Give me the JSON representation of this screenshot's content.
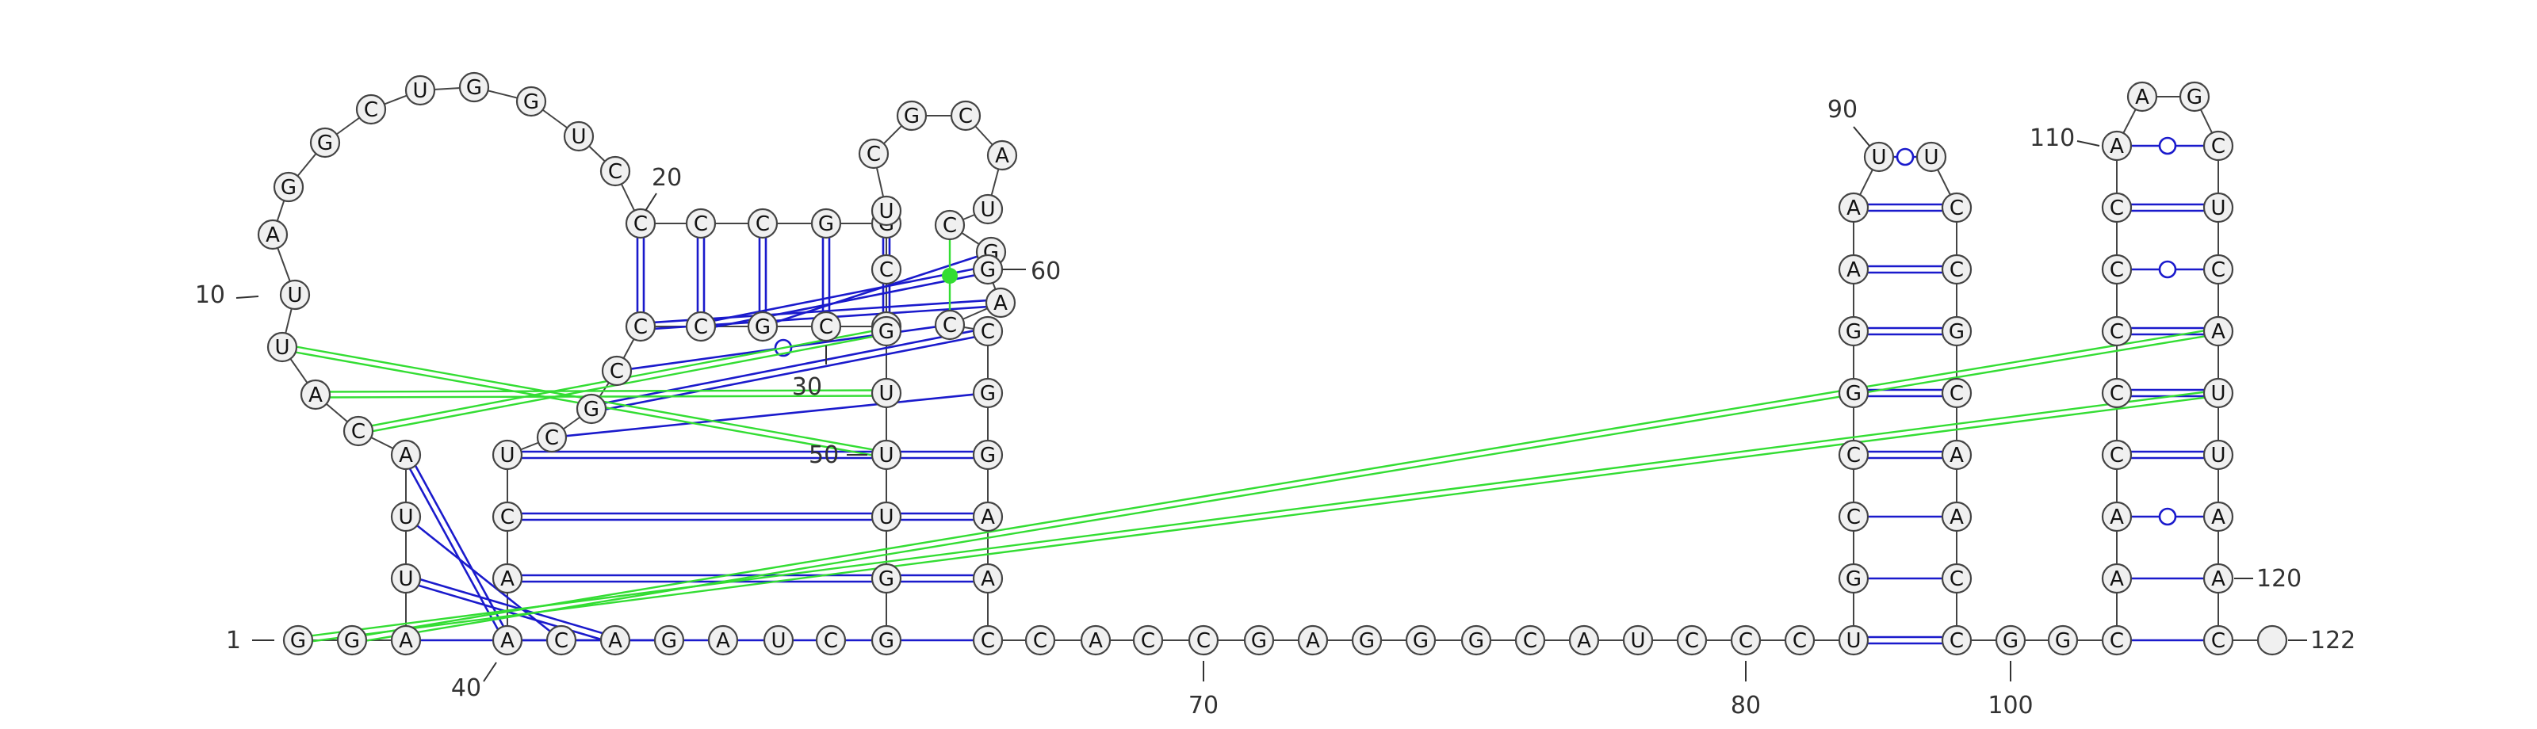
{
  "structure": {
    "sequence": "GGAUUACAUUAGGCUGGUCCCCGGGCGCCCGCUCAACAGAUCGGUUUGCUCGCAUCGGACCGGAACCACCGAGGGCAUCCCUGCCGGAAUUCCGCAACCGGCAACCCCCAAGCUCAUUAAC",
    "length": 122,
    "base_pairs": "1-indexed",
    "position_labels": [
      "1",
      "10",
      "20",
      "30",
      "40",
      "50",
      "60",
      "70",
      "80",
      "90",
      "100",
      "110",
      "120",
      "122"
    ],
    "colors": {
      "backbone": "#444444",
      "canonical_pair": "#1a1acc",
      "noncanonical_pair": "#1a1acc",
      "pseudoknot": "#33dd33",
      "base_fill": "#f0f0f0"
    }
  }
}
